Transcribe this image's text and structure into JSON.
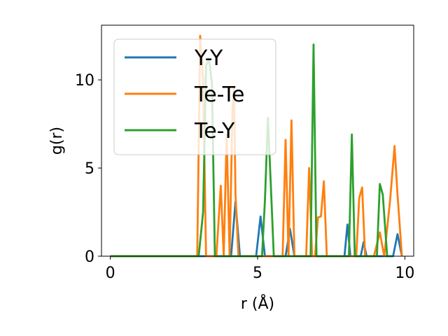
{
  "chart_data": {
    "type": "line",
    "xlabel": "r (Å)",
    "ylabel": "g(r)",
    "xlim": [
      -0.3,
      10.3
    ],
    "ylim": [
      0,
      13.1
    ],
    "xticks": [
      {
        "value": 0,
        "label": "0"
      },
      {
        "value": 5,
        "label": "5"
      },
      {
        "value": 10,
        "label": "10"
      }
    ],
    "yticks": [
      {
        "value": 0,
        "label": "0"
      },
      {
        "value": 5,
        "label": "5"
      },
      {
        "value": 10,
        "label": "10"
      }
    ],
    "legend_position": "upper-left",
    "series": [
      {
        "name": "Y-Y",
        "color": "#1f77b4",
        "x": [
          0,
          4.1,
          4.25,
          4.4,
          4.95,
          5.1,
          5.25,
          5.95,
          6.1,
          6.25,
          7.95,
          8.05,
          8.15,
          8.5,
          8.6,
          8.7,
          9.6,
          9.75,
          9.9
        ],
        "y": [
          0,
          0,
          3.1,
          0,
          0,
          2.25,
          0,
          0,
          1.55,
          0,
          0,
          1.8,
          0,
          0,
          0.8,
          0,
          0,
          1.25,
          0
        ]
      },
      {
        "name": "Te-Te",
        "color": "#ff7f0e",
        "x": [
          0,
          2.95,
          3.05,
          3.15,
          3.25,
          3.35,
          3.45,
          3.6,
          3.75,
          3.85,
          3.95,
          4.05,
          4.15,
          4.2,
          4.25,
          4.35,
          4.45,
          5.85,
          5.95,
          6.05,
          6.15,
          6.25,
          6.35,
          6.65,
          6.75,
          6.85,
          6.95,
          7.05,
          7.15,
          7.25,
          7.35,
          7.45,
          8.35,
          8.45,
          8.55,
          8.65,
          8.95,
          9.15,
          9.3,
          9.5,
          9.65,
          9.75,
          9.9
        ],
        "y": [
          0,
          0,
          12.5,
          10,
          0,
          0,
          0,
          0,
          4,
          0,
          6.9,
          0,
          8.5,
          9.6,
          3.5,
          0,
          0,
          0,
          6.6,
          0,
          7.7,
          0,
          0,
          0,
          5,
          0,
          0,
          2.2,
          2.25,
          4.25,
          0,
          0,
          0,
          3.3,
          3.9,
          0,
          0,
          1.35,
          0,
          3.2,
          6.25,
          3.5,
          0
        ]
      },
      {
        "name": "Te-Y",
        "color": "#2ca02c",
        "x": [
          0,
          3.0,
          3.15,
          3.25,
          3.35,
          3.45,
          3.55,
          3.65,
          5.15,
          5.25,
          5.35,
          5.45,
          5.55,
          6.8,
          6.9,
          7.0,
          8.1,
          8.2,
          8.3,
          9.05,
          9.15,
          9.25,
          9.4,
          9.55
        ],
        "y": [
          0,
          0,
          2.5,
          10.8,
          11.2,
          9.8,
          0,
          0,
          0,
          3.2,
          7.85,
          4,
          0,
          0,
          12,
          0,
          0,
          6.9,
          0,
          0,
          4.1,
          3.5,
          0,
          0
        ]
      }
    ]
  }
}
